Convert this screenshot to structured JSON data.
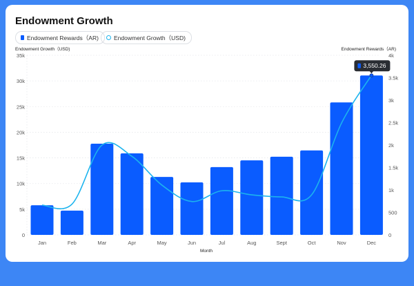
{
  "chart_data": {
    "type": "bar",
    "title": "Endowment Growth",
    "xlabel": "Month",
    "categories": [
      "Jan",
      "Feb",
      "Mar",
      "Apr",
      "May",
      "Jun",
      "Jul",
      "Aug",
      "Sept",
      "Oct",
      "Nov",
      "Dec"
    ],
    "series": [
      {
        "name": "Endowment Rewards（AR)",
        "type": "bar",
        "axis": "right",
        "color": "#0a5cff",
        "values": [
          660,
          540,
          2030,
          1815,
          1290,
          1170,
          1510,
          1660,
          1740,
          1880,
          2950,
          3550.26
        ]
      },
      {
        "name": "Endowment Growth（USD)",
        "type": "line",
        "axis": "left",
        "color": "#1cb4ee",
        "values": [
          5800,
          6000,
          17500,
          15300,
          9700,
          6500,
          8600,
          7800,
          7400,
          7800,
          21800,
          31100
        ]
      }
    ],
    "left_axis": {
      "label": "Endowment Growth（USD)",
      "ylim": [
        0,
        35000
      ],
      "ticks": [
        "0",
        "5k",
        "10k",
        "15k",
        "20k",
        "25k",
        "30k",
        "35k"
      ]
    },
    "right_axis": {
      "label": "Endowment Rewards（AR)",
      "ylim": [
        0,
        4000
      ],
      "ticks": [
        "0",
        "500",
        "1k",
        "1.5k",
        "2k",
        "2.5k",
        "3k",
        "3.5k",
        "4k"
      ]
    },
    "tooltip": {
      "category": "Dec",
      "value": "3,550.26"
    },
    "grid": true,
    "legend": "top-left"
  }
}
